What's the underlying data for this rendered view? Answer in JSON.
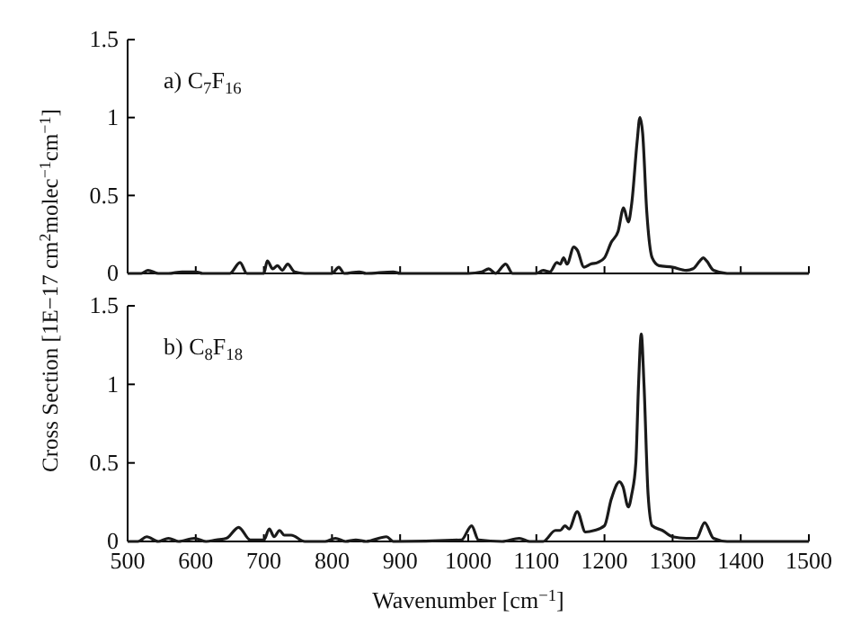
{
  "chart_data": [
    {
      "type": "line",
      "annotations": [
        "a) C$_{7}$F$_{16}$"
      ],
      "xlim": [
        500,
        1500
      ],
      "xticks": [
        500,
        600,
        700,
        800,
        900,
        1000,
        1100,
        1200,
        1300,
        1400,
        1500
      ],
      "ylim": [
        0,
        1.5
      ],
      "yticks": [
        0,
        0.5,
        1,
        1.5
      ],
      "tick_labels": "y",
      "grid": false,
      "marker": "none",
      "line_style": "solid",
      "series": [
        {
          "color": "#1a1a1a",
          "x": [
            500,
            520,
            530,
            545,
            560,
            580,
            600,
            610,
            650,
            665,
            675,
            700,
            705,
            713,
            720,
            727,
            735,
            745,
            760,
            780,
            800,
            810,
            818,
            840,
            850,
            890,
            900,
            950,
            1000,
            1020,
            1030,
            1040,
            1055,
            1065,
            1100,
            1110,
            1120,
            1130,
            1135,
            1140,
            1145,
            1155,
            1160,
            1170,
            1180,
            1190,
            1200,
            1210,
            1220,
            1228,
            1235,
            1240,
            1248,
            1252,
            1256,
            1262,
            1270,
            1280,
            1300,
            1320,
            1330,
            1340,
            1345,
            1350,
            1360,
            1380,
            1500
          ],
          "values": [
            0,
            0,
            0.02,
            0,
            0,
            0.01,
            0.01,
            0,
            0,
            0.07,
            0,
            0,
            0.08,
            0.03,
            0.05,
            0.02,
            0.06,
            0.01,
            0,
            0,
            0,
            0.04,
            0,
            0.01,
            0,
            0.01,
            0,
            0,
            0,
            0.01,
            0.03,
            0,
            0.06,
            0,
            0,
            0.02,
            0.01,
            0.07,
            0.06,
            0.1,
            0.06,
            0.17,
            0.15,
            0.04,
            0.06,
            0.07,
            0.1,
            0.2,
            0.27,
            0.42,
            0.33,
            0.45,
            0.85,
            1.0,
            0.9,
            0.4,
            0.1,
            0.05,
            0.04,
            0.02,
            0.03,
            0.08,
            0.1,
            0.08,
            0.02,
            0,
            0
          ]
        }
      ]
    },
    {
      "type": "line",
      "annotations": [
        "b) C$_{8}$F$_{18}$"
      ],
      "xlabel": "Wavenumber [cm$^{−1}$]",
      "ylabel": "Cross Section [1E−17 cm$^{2}$molec$^{−1}$cm$^{−1}$]",
      "xlim": [
        500,
        1500
      ],
      "xticks": [
        500,
        600,
        700,
        800,
        900,
        1000,
        1100,
        1200,
        1300,
        1400,
        1500
      ],
      "ylim": [
        0,
        1.5
      ],
      "yticks": [
        0,
        0.5,
        1,
        1.5
      ],
      "grid": false,
      "marker": "none",
      "line_style": "solid",
      "series": [
        {
          "color": "#1a1a1a",
          "x": [
            500,
            515,
            528,
            545,
            560,
            575,
            598,
            615,
            630,
            645,
            663,
            680,
            700,
            708,
            715,
            723,
            730,
            740,
            760,
            790,
            805,
            820,
            835,
            850,
            880,
            890,
            990,
            1005,
            1015,
            1050,
            1075,
            1090,
            1110,
            1128,
            1135,
            1142,
            1148,
            1160,
            1172,
            1185,
            1200,
            1210,
            1222,
            1227,
            1235,
            1240,
            1246,
            1250,
            1254,
            1258,
            1264,
            1270,
            1285,
            1300,
            1320,
            1335,
            1347,
            1360,
            1380,
            1500
          ],
          "values": [
            0,
            0,
            0.03,
            0,
            0.02,
            0,
            0.02,
            0,
            0.01,
            0.02,
            0.09,
            0.01,
            0.01,
            0.08,
            0.03,
            0.07,
            0.04,
            0.04,
            0,
            0,
            0.02,
            0,
            0.01,
            0,
            0.03,
            0,
            0.01,
            0.1,
            0.01,
            0,
            0.02,
            0,
            0,
            0.07,
            0.07,
            0.1,
            0.08,
            0.19,
            0.06,
            0.07,
            0.1,
            0.27,
            0.38,
            0.35,
            0.22,
            0.3,
            0.5,
            1.0,
            1.32,
            1.0,
            0.3,
            0.1,
            0.07,
            0.03,
            0.02,
            0.02,
            0.12,
            0.02,
            0,
            0
          ]
        }
      ]
    }
  ]
}
